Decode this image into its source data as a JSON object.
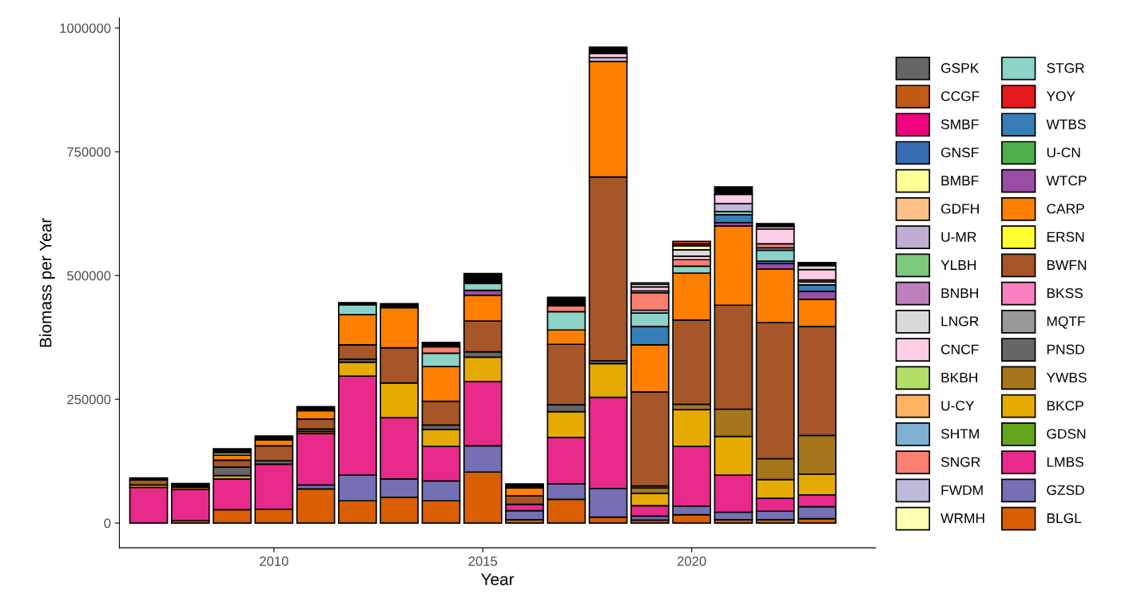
{
  "chart_data": {
    "type": "bar",
    "stacked": true,
    "xlabel": "Year",
    "ylabel": "Biomass per Year",
    "x": [
      2007,
      2008,
      2009,
      2010,
      2011,
      2012,
      2013,
      2014,
      2015,
      2016,
      2017,
      2018,
      2019,
      2020,
      2021,
      2022,
      2023
    ],
    "xlim": [
      2006.3,
      2024.4
    ],
    "xticks": [
      2010,
      2015,
      2020
    ],
    "ylim": [
      -50000,
      1020000
    ],
    "yticks": [
      0,
      250000,
      500000,
      750000,
      1000000
    ],
    "grid": false,
    "legend": "right",
    "series": [
      {
        "name": "BLGL",
        "color": "#d95f02",
        "values": [
          0,
          5000,
          27000,
          28000,
          69000,
          45000,
          52000,
          45000,
          103000,
          7000,
          48000,
          12000,
          6000,
          17000,
          7000,
          7000,
          9000
        ]
      },
      {
        "name": "GZSD",
        "color": "#7570b3",
        "values": [
          0,
          0,
          0,
          0,
          8000,
          52000,
          37000,
          40000,
          53000,
          18000,
          31000,
          58000,
          8000,
          17000,
          15000,
          17000,
          24000
        ]
      },
      {
        "name": "LMBS",
        "color": "#e7298a",
        "values": [
          72000,
          63000,
          62000,
          91000,
          104000,
          200000,
          124000,
          70000,
          130000,
          13000,
          94000,
          184000,
          21000,
          121000,
          75000,
          26000,
          24000
        ]
      },
      {
        "name": "GDSN",
        "color": "#66a61e",
        "values": [
          0,
          0,
          0,
          0,
          0,
          0,
          0,
          0,
          0,
          0,
          0,
          0,
          0,
          0,
          0,
          0,
          0
        ]
      },
      {
        "name": "BKCP",
        "color": "#e6ab02",
        "values": [
          5000,
          4000,
          7000,
          null,
          4000,
          28000,
          70000,
          34000,
          49000,
          0,
          52000,
          68000,
          25000,
          74000,
          78000,
          38000,
          42000
        ]
      },
      {
        "name": "YWBS",
        "color": "#a6761d",
        "values": [
          0,
          0,
          0,
          0,
          0,
          0,
          0,
          0,
          0,
          0,
          0,
          0,
          11000,
          11000,
          55000,
          42000,
          78000
        ]
      },
      {
        "name": "PNSD",
        "color": "#666666",
        "values": [
          0,
          null,
          17000,
          7000,
          5000,
          6000,
          0,
          9000,
          11000,
          0,
          14000,
          6000,
          0,
          0,
          0,
          0,
          0
        ]
      },
      {
        "name": "MQTF",
        "color": "#999999",
        "values": [
          0,
          0,
          0,
          0,
          0,
          0,
          0,
          0,
          0,
          0,
          0,
          0,
          4000,
          0,
          0,
          0,
          0
        ]
      },
      {
        "name": "BKSS",
        "color": "#f781bf",
        "values": [
          0,
          0,
          0,
          0,
          0,
          0,
          0,
          0,
          0,
          0,
          0,
          0,
          0,
          0,
          0,
          0,
          0
        ]
      },
      {
        "name": "BWFN",
        "color": "#a65628",
        "values": [
          10000,
          0,
          14000,
          30000,
          20000,
          29000,
          71000,
          48000,
          62000,
          17000,
          122000,
          371000,
          190000,
          170000,
          210000,
          275000,
          220000
        ]
      },
      {
        "name": "ERSN",
        "color": "#ffff33",
        "values": [
          0,
          0,
          0,
          0,
          0,
          0,
          0,
          0,
          0,
          0,
          0,
          0,
          0,
          0,
          0,
          0,
          0
        ]
      },
      {
        "name": "CARP",
        "color": "#ff7f00",
        "values": [
          0,
          0,
          10000,
          12000,
          17000,
          61000,
          81000,
          70000,
          52000,
          16000,
          29000,
          233000,
          95000,
          95000,
          160000,
          108000,
          55000
        ]
      },
      {
        "name": "WTCP",
        "color": "#984ea3",
        "values": [
          0,
          0,
          0,
          0,
          0,
          0,
          0,
          0,
          10000,
          0,
          0,
          0,
          0,
          0,
          7000,
          11000,
          16000
        ]
      },
      {
        "name": "U-CN",
        "color": "#4daf4a",
        "values": [
          0,
          0,
          0,
          0,
          0,
          0,
          0,
          0,
          0,
          0,
          0,
          0,
          0,
          0,
          0,
          0,
          0
        ]
      },
      {
        "name": "WTBS",
        "color": "#377eb8",
        "values": [
          0,
          0,
          0,
          0,
          0,
          0,
          0,
          0,
          0,
          0,
          0,
          0,
          37000,
          0,
          16000,
          5000,
          13000
        ]
      },
      {
        "name": "YOY",
        "color": "#e41a1c",
        "values": [
          0,
          0,
          0,
          0,
          0,
          0,
          0,
          0,
          0,
          0,
          0,
          0,
          0,
          0,
          0,
          0,
          0
        ]
      },
      {
        "name": "STGR",
        "color": "#8dd3c7",
        "values": [
          0,
          0,
          0,
          0,
          0,
          20000,
          0,
          27000,
          14000,
          0,
          37000,
          0,
          27000,
          14000,
          6000,
          22000,
          0
        ]
      },
      {
        "name": "WRMH",
        "color": "#ffffb3",
        "values": [
          0,
          0,
          0,
          0,
          0,
          0,
          0,
          0,
          0,
          0,
          0,
          0,
          0,
          0,
          0,
          0,
          0
        ]
      },
      {
        "name": "FWDM",
        "color": "#bebada",
        "values": [
          0,
          0,
          0,
          0,
          0,
          0,
          0,
          0,
          0,
          0,
          0,
          8000,
          6000,
          0,
          16000,
          5000,
          6000
        ]
      },
      {
        "name": "SNGR",
        "color": "#fb8072",
        "values": [
          0,
          0,
          0,
          0,
          0,
          0,
          null,
          13000,
          0,
          0,
          12000,
          0,
          35000,
          13000,
          0,
          8000,
          4000
        ]
      },
      {
        "name": "SHTM",
        "color": "#80b1d3",
        "values": [
          0,
          0,
          0,
          0,
          0,
          0,
          0,
          0,
          0,
          0,
          0,
          0,
          0,
          0,
          0,
          0,
          0
        ]
      },
      {
        "name": "U-CY",
        "color": "#fdb462",
        "values": [
          0,
          0,
          0,
          0,
          0,
          0,
          0,
          0,
          0,
          0,
          0,
          0,
          0,
          0,
          0,
          0,
          0
        ]
      },
      {
        "name": "BKBH",
        "color": "#b3de69",
        "values": [
          0,
          0,
          5000,
          0,
          0,
          0,
          0,
          0,
          0,
          0,
          0,
          0,
          4000,
          0,
          0,
          0,
          0
        ]
      },
      {
        "name": "CNCF",
        "color": "#fccde5",
        "values": [
          0,
          0,
          0,
          0,
          0,
          0,
          0,
          0,
          0,
          0,
          0,
          8000,
          8000,
          7000,
          19000,
          30000,
          21000
        ]
      },
      {
        "name": "LNGR",
        "color": "#d9d9d9",
        "values": [
          0,
          0,
          0,
          0,
          0,
          0,
          0,
          0,
          0,
          0,
          0,
          0,
          5000,
          13000,
          0,
          5000,
          8000
        ]
      },
      {
        "name": "BNBH",
        "color": "#bc80bd",
        "values": [
          0,
          0,
          0,
          0,
          0,
          0,
          0,
          0,
          0,
          0,
          0,
          null,
          0,
          0,
          0,
          0,
          0
        ]
      },
      {
        "name": "YLBH",
        "color": "#7fc97f",
        "values": [
          0,
          0,
          0,
          0,
          0,
          0,
          0,
          0,
          0,
          0,
          0,
          0,
          0,
          0,
          0,
          0,
          0
        ]
      },
      {
        "name": "U-MR",
        "color": "#beaed4",
        "values": [
          0,
          0,
          0,
          0,
          0,
          0,
          0,
          0,
          0,
          0,
          0,
          0,
          0,
          0,
          0,
          0,
          0
        ]
      },
      {
        "name": "GDFH",
        "color": "#fdc086",
        "values": [
          0,
          0,
          0,
          0,
          0,
          0,
          0,
          0,
          0,
          0,
          0,
          0,
          0,
          0,
          0,
          0,
          0
        ]
      },
      {
        "name": "BMBF",
        "color": "#ffff99",
        "values": [
          0,
          0,
          0,
          0,
          0,
          0,
          0,
          0,
          0,
          0,
          0,
          0,
          3000,
          8000,
          0,
          0,
          0
        ]
      },
      {
        "name": "GNSF",
        "color": "#386cb0",
        "values": [
          0,
          0,
          0,
          0,
          0,
          0,
          0,
          0,
          0,
          0,
          0,
          0,
          0,
          0,
          0,
          0,
          0
        ]
      },
      {
        "name": "SMBF",
        "color": "#f0027f",
        "values": [
          0,
          0,
          0,
          0,
          0,
          0,
          0,
          0,
          0,
          0,
          0,
          0,
          0,
          4000,
          0,
          0,
          0
        ]
      },
      {
        "name": "CCGF",
        "color": "#bf5b17",
        "values": [
          0,
          0,
          0,
          0,
          0,
          0,
          0,
          0,
          0,
          0,
          0,
          0,
          0,
          5000,
          0,
          0,
          0
        ]
      },
      {
        "name": "GSPK",
        "color": "#666666",
        "values": [
          0,
          0,
          0,
          0,
          0,
          0,
          0,
          0,
          0,
          0,
          0,
          0,
          0,
          0,
          0,
          0,
          0
        ]
      },
      {
        "color": "#000000",
        "values": [
          4000,
          8000,
          8000,
          8000,
          8000,
          4000,
          8000,
          9000,
          20000,
          8000,
          17000,
          13000,
          0,
          0,
          15000,
          6000,
          6000
        ]
      }
    ]
  }
}
